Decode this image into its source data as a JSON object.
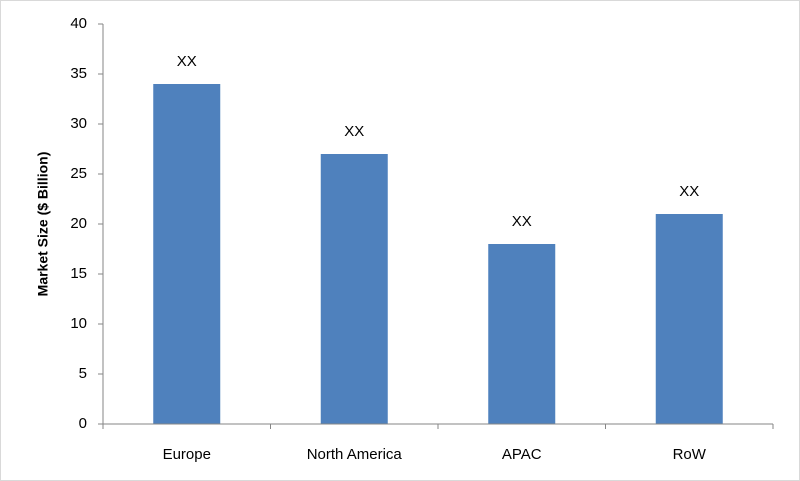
{
  "chart_data": {
    "type": "bar",
    "y_label": "Market Size ($ Billion)",
    "categories": [
      "Europe",
      "North America",
      "APAC",
      "RoW"
    ],
    "values": [
      34,
      27,
      18,
      21
    ],
    "value_labels": [
      "XX",
      "XX",
      "XX",
      "XX"
    ],
    "color": "#4f81bd",
    "ylim": [
      0,
      40
    ],
    "yticks": [
      0,
      5,
      10,
      15,
      20,
      25,
      30,
      35,
      40
    ],
    "grid": false
  }
}
